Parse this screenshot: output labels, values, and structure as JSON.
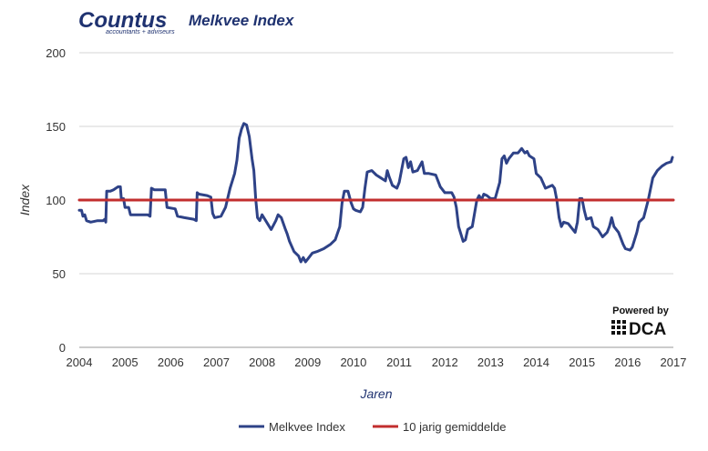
{
  "brand": {
    "name": "Countus",
    "tagline": "accountants + adviseurs",
    "color": "#1f3270"
  },
  "badge": {
    "powered_label": "Powered by",
    "name": "DCA"
  },
  "chart_data": {
    "type": "line",
    "title": "Melkvee Index",
    "xlabel": "Jaren",
    "ylabel": "Index",
    "xlim": [
      2004,
      2017
    ],
    "ylim": [
      0,
      200
    ],
    "x_ticks": [
      "2004",
      "2005",
      "2006",
      "2007",
      "2008",
      "2009",
      "2010",
      "2011",
      "2012",
      "2013",
      "2014",
      "2015",
      "2016",
      "2017"
    ],
    "y_ticks": [
      "0",
      "50",
      "100",
      "150",
      "200"
    ],
    "grid": true,
    "legend": "bottom-center",
    "series": [
      {
        "name": "Melkvee Index",
        "color": "#2e4287",
        "points": [
          [
            2004.0,
            93
          ],
          [
            2004.05,
            93
          ],
          [
            2004.08,
            89
          ],
          [
            2004.12,
            90
          ],
          [
            2004.16,
            86
          ],
          [
            2004.25,
            85
          ],
          [
            2004.4,
            86
          ],
          [
            2004.52,
            86
          ],
          [
            2004.56,
            87
          ],
          [
            2004.58,
            85
          ],
          [
            2004.6,
            106
          ],
          [
            2004.68,
            106
          ],
          [
            2004.75,
            107
          ],
          [
            2004.85,
            109
          ],
          [
            2004.9,
            109
          ],
          [
            2004.92,
            101
          ],
          [
            2004.97,
            101
          ],
          [
            2005.0,
            95
          ],
          [
            2005.08,
            95
          ],
          [
            2005.12,
            90
          ],
          [
            2005.3,
            90
          ],
          [
            2005.5,
            90
          ],
          [
            2005.55,
            89
          ],
          [
            2005.58,
            108
          ],
          [
            2005.64,
            107
          ],
          [
            2005.8,
            107
          ],
          [
            2005.88,
            107
          ],
          [
            2005.92,
            95
          ],
          [
            2006.1,
            94
          ],
          [
            2006.15,
            89
          ],
          [
            2006.3,
            88
          ],
          [
            2006.5,
            87
          ],
          [
            2006.56,
            86
          ],
          [
            2006.58,
            105
          ],
          [
            2006.62,
            104
          ],
          [
            2006.8,
            103
          ],
          [
            2006.88,
            102
          ],
          [
            2006.92,
            91
          ],
          [
            2006.96,
            88
          ],
          [
            2007.1,
            89
          ],
          [
            2007.2,
            95
          ],
          [
            2007.3,
            108
          ],
          [
            2007.4,
            118
          ],
          [
            2007.45,
            127
          ],
          [
            2007.5,
            142
          ],
          [
            2007.55,
            148
          ],
          [
            2007.6,
            152
          ],
          [
            2007.66,
            151
          ],
          [
            2007.72,
            143
          ],
          [
            2007.78,
            128
          ],
          [
            2007.82,
            120
          ],
          [
            2007.86,
            101
          ],
          [
            2007.9,
            88
          ],
          [
            2007.95,
            86
          ],
          [
            2008.0,
            90
          ],
          [
            2008.1,
            85
          ],
          [
            2008.2,
            80
          ],
          [
            2008.3,
            86
          ],
          [
            2008.35,
            90
          ],
          [
            2008.42,
            88
          ],
          [
            2008.5,
            81
          ],
          [
            2008.55,
            77
          ],
          [
            2008.6,
            72
          ],
          [
            2008.7,
            65
          ],
          [
            2008.8,
            62
          ],
          [
            2008.85,
            58
          ],
          [
            2008.9,
            61
          ],
          [
            2008.95,
            58
          ],
          [
            2009.0,
            60
          ],
          [
            2009.1,
            64
          ],
          [
            2009.2,
            65
          ],
          [
            2009.35,
            67
          ],
          [
            2009.5,
            70
          ],
          [
            2009.6,
            73
          ],
          [
            2009.7,
            82
          ],
          [
            2009.75,
            98
          ],
          [
            2009.8,
            106
          ],
          [
            2009.88,
            106
          ],
          [
            2009.95,
            98
          ],
          [
            2010.0,
            94
          ],
          [
            2010.05,
            93
          ],
          [
            2010.15,
            92
          ],
          [
            2010.2,
            95
          ],
          [
            2010.25,
            108
          ],
          [
            2010.3,
            119
          ],
          [
            2010.4,
            120
          ],
          [
            2010.5,
            117
          ],
          [
            2010.6,
            115
          ],
          [
            2010.7,
            113
          ],
          [
            2010.74,
            120
          ],
          [
            2010.78,
            116
          ],
          [
            2010.85,
            110
          ],
          [
            2010.95,
            108
          ],
          [
            2011.0,
            112
          ],
          [
            2011.1,
            128
          ],
          [
            2011.15,
            129
          ],
          [
            2011.2,
            122
          ],
          [
            2011.25,
            126
          ],
          [
            2011.3,
            119
          ],
          [
            2011.4,
            120
          ],
          [
            2011.5,
            126
          ],
          [
            2011.55,
            118
          ],
          [
            2011.65,
            118
          ],
          [
            2011.8,
            117
          ],
          [
            2011.9,
            109
          ],
          [
            2012.0,
            105
          ],
          [
            2012.15,
            105
          ],
          [
            2012.2,
            102
          ],
          [
            2012.25,
            95
          ],
          [
            2012.3,
            82
          ],
          [
            2012.4,
            72
          ],
          [
            2012.45,
            73
          ],
          [
            2012.5,
            80
          ],
          [
            2012.6,
            82
          ],
          [
            2012.7,
            100
          ],
          [
            2012.75,
            103
          ],
          [
            2012.8,
            100
          ],
          [
            2012.85,
            104
          ],
          [
            2012.92,
            103
          ],
          [
            2013.0,
            101
          ],
          [
            2013.1,
            101
          ],
          [
            2013.2,
            112
          ],
          [
            2013.25,
            128
          ],
          [
            2013.3,
            130
          ],
          [
            2013.35,
            125
          ],
          [
            2013.4,
            128
          ],
          [
            2013.5,
            132
          ],
          [
            2013.6,
            132
          ],
          [
            2013.68,
            135
          ],
          [
            2013.75,
            132
          ],
          [
            2013.8,
            133
          ],
          [
            2013.85,
            130
          ],
          [
            2013.95,
            128
          ],
          [
            2014.0,
            118
          ],
          [
            2014.1,
            115
          ],
          [
            2014.2,
            108
          ],
          [
            2014.35,
            110
          ],
          [
            2014.4,
            108
          ],
          [
            2014.45,
            100
          ],
          [
            2014.5,
            88
          ],
          [
            2014.55,
            82
          ],
          [
            2014.6,
            85
          ],
          [
            2014.7,
            84
          ],
          [
            2014.8,
            80
          ],
          [
            2014.85,
            78
          ],
          [
            2014.9,
            85
          ],
          [
            2014.95,
            101
          ],
          [
            2015.0,
            101
          ],
          [
            2015.05,
            93
          ],
          [
            2015.1,
            87
          ],
          [
            2015.2,
            88
          ],
          [
            2015.25,
            82
          ],
          [
            2015.35,
            80
          ],
          [
            2015.45,
            75
          ],
          [
            2015.55,
            78
          ],
          [
            2015.6,
            82
          ],
          [
            2015.65,
            88
          ],
          [
            2015.7,
            82
          ],
          [
            2015.8,
            78
          ],
          [
            2015.9,
            70
          ],
          [
            2015.95,
            67
          ],
          [
            2016.05,
            66
          ],
          [
            2016.1,
            68
          ],
          [
            2016.2,
            78
          ],
          [
            2016.25,
            85
          ],
          [
            2016.35,
            88
          ],
          [
            2016.45,
            100
          ],
          [
            2016.55,
            115
          ],
          [
            2016.65,
            120
          ],
          [
            2016.75,
            123
          ],
          [
            2016.85,
            125
          ],
          [
            2016.95,
            126
          ],
          [
            2016.98,
            129
          ]
        ]
      },
      {
        "name": "10 jarig gemiddelde",
        "color": "#c22e2e",
        "points": [
          [
            2004,
            100
          ],
          [
            2017,
            100
          ]
        ]
      }
    ]
  }
}
